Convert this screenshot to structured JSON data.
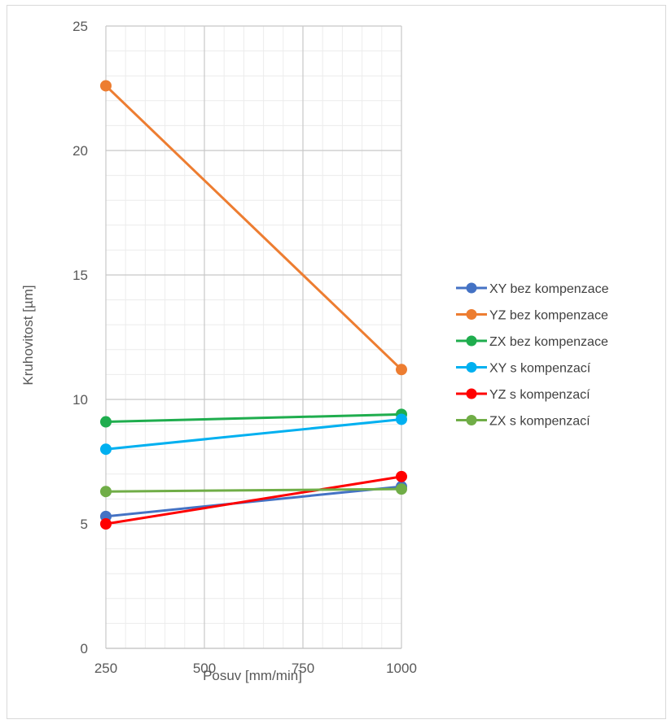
{
  "chart_data": {
    "type": "line",
    "title": "",
    "xlabel": "Posuv [mm/min]",
    "ylabel": "Kruhovitost [µm]",
    "x_ticks": [
      250,
      500,
      750,
      1000
    ],
    "y_ticks": [
      0,
      5,
      10,
      15,
      20,
      25
    ],
    "xlim": [
      250,
      1000
    ],
    "ylim": [
      0,
      25
    ],
    "grid": "major and minor",
    "legend_position": "right",
    "series": [
      {
        "name": "XY bez kompenzace",
        "color": "#4472C4",
        "x": [
          250,
          1000
        ],
        "y": [
          5.3,
          6.5
        ]
      },
      {
        "name": "YZ bez kompenzace",
        "color": "#ED7D31",
        "x": [
          250,
          1000
        ],
        "y": [
          22.6,
          11.2
        ]
      },
      {
        "name": "ZX bez kompenzace",
        "color": "#1FAD4E",
        "x": [
          250,
          1000
        ],
        "y": [
          9.1,
          9.4
        ]
      },
      {
        "name": "XY s kompenzací",
        "color": "#00B0F0",
        "x": [
          250,
          1000
        ],
        "y": [
          8.0,
          9.2
        ]
      },
      {
        "name": "YZ s kompenzací",
        "color": "#FF0000",
        "x": [
          250,
          1000
        ],
        "y": [
          5.0,
          6.9
        ]
      },
      {
        "name": "ZX s kompenzací",
        "color": "#70AD47",
        "x": [
          250,
          1000
        ],
        "y": [
          6.3,
          6.4
        ]
      }
    ]
  }
}
